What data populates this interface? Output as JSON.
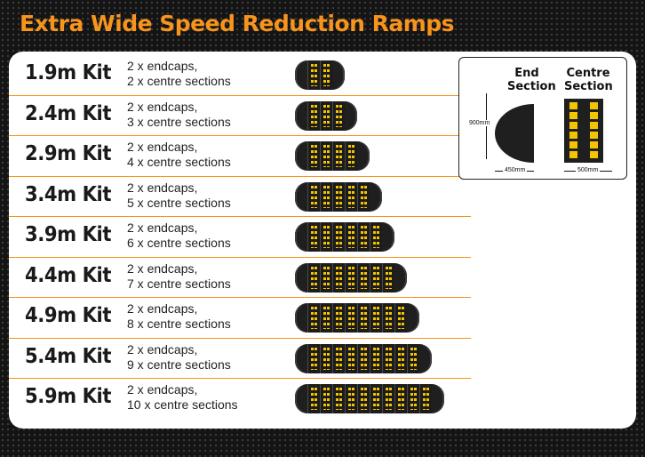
{
  "title": "Extra Wide Speed Reduction Ramps",
  "colors": {
    "accent": "#f7941d",
    "stripe": "#f5c400",
    "ramp": "#1f1f1f"
  },
  "kits": [
    {
      "name": "1.9m Kit",
      "line1": "2 x endcaps,",
      "line2": "2 x centre sections",
      "endcaps": 2,
      "centre_sections": 2
    },
    {
      "name": "2.4m Kit",
      "line1": "2 x endcaps,",
      "line2": "3 x centre sections",
      "endcaps": 2,
      "centre_sections": 3
    },
    {
      "name": "2.9m Kit",
      "line1": "2 x endcaps,",
      "line2": "4 x centre sections",
      "endcaps": 2,
      "centre_sections": 4
    },
    {
      "name": "3.4m Kit",
      "line1": "2 x endcaps,",
      "line2": "5 x centre sections",
      "endcaps": 2,
      "centre_sections": 5
    },
    {
      "name": "3.9m Kit",
      "line1": "2 x endcaps,",
      "line2": "6 x centre sections",
      "endcaps": 2,
      "centre_sections": 6
    },
    {
      "name": "4.4m Kit",
      "line1": "2 x endcaps,",
      "line2": "7 x centre sections",
      "endcaps": 2,
      "centre_sections": 7
    },
    {
      "name": "4.9m Kit",
      "line1": "2 x endcaps,",
      "line2": "8 x centre sections",
      "endcaps": 2,
      "centre_sections": 8
    },
    {
      "name": "5.4m Kit",
      "line1": "2 x endcaps,",
      "line2": "9 x centre sections",
      "endcaps": 2,
      "centre_sections": 9
    },
    {
      "name": "5.9m Kit",
      "line1": "2 x endcaps,",
      "line2": "10 x centre sections",
      "endcaps": 2,
      "centre_sections": 10
    }
  ],
  "diagram": {
    "end_label_1": "End",
    "end_label_2": "Section",
    "centre_label_1": "Centre",
    "centre_label_2": "Section",
    "height_dim": "900mm",
    "end_width_dim": "450mm",
    "centre_width_dim": "500mm"
  }
}
